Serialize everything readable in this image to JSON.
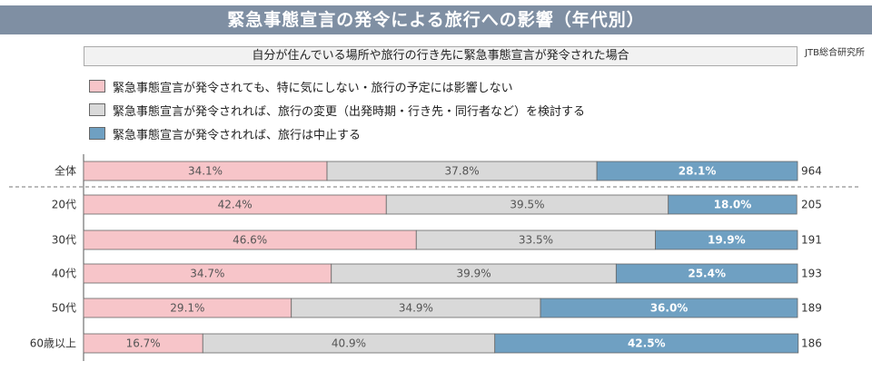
{
  "header": {
    "title": "緊急事態宣言の発令による旅行への影響（年代別）",
    "subtitle": "自分が住んでいる場所や旅行の行き先に緊急事態宣言が発令された場合",
    "source": "JTB総合研究所"
  },
  "colors": {
    "pink": "#f7c5c9",
    "gray": "#d9d9d9",
    "blue": "#6fa0c2"
  },
  "chart_data": {
    "type": "bar",
    "orientation": "horizontal",
    "stacked": true,
    "unit": "%",
    "categories": [
      "全体",
      "20代",
      "30代",
      "40代",
      "50代",
      "60歳以上"
    ],
    "series": [
      {
        "name": "緊急事態宣言が発令されても、特に気にしない・旅行の予定には影響しない",
        "values": [
          34.1,
          42.4,
          46.6,
          34.7,
          29.1,
          16.7
        ],
        "labels": [
          "34.1%",
          "42.4%",
          "46.6%",
          "34.7%",
          "29.1%",
          "16.7%"
        ],
        "color": "#f7c5c9"
      },
      {
        "name": "緊急事態宣言が発令されれば、旅行の変更（出発時期・行き先・同行者など）を検討する",
        "values": [
          37.8,
          39.5,
          33.5,
          39.9,
          34.9,
          40.9
        ],
        "labels": [
          "37.8%",
          "39.5%",
          "33.5%",
          "39.9%",
          "34.9%",
          "40.9%"
        ],
        "color": "#d9d9d9"
      },
      {
        "name": "緊急事態宣言が発令されれば、旅行は中止する",
        "values": [
          28.1,
          18.0,
          19.9,
          25.4,
          36.0,
          42.5
        ],
        "labels": [
          "28.1%",
          "18.0%",
          "19.9%",
          "25.4%",
          "36.0%",
          "42.5%"
        ],
        "color": "#6fa0c2"
      }
    ],
    "n": [
      "964",
      "205",
      "191",
      "193",
      "189",
      "186"
    ],
    "xlim": [
      0,
      100
    ]
  }
}
